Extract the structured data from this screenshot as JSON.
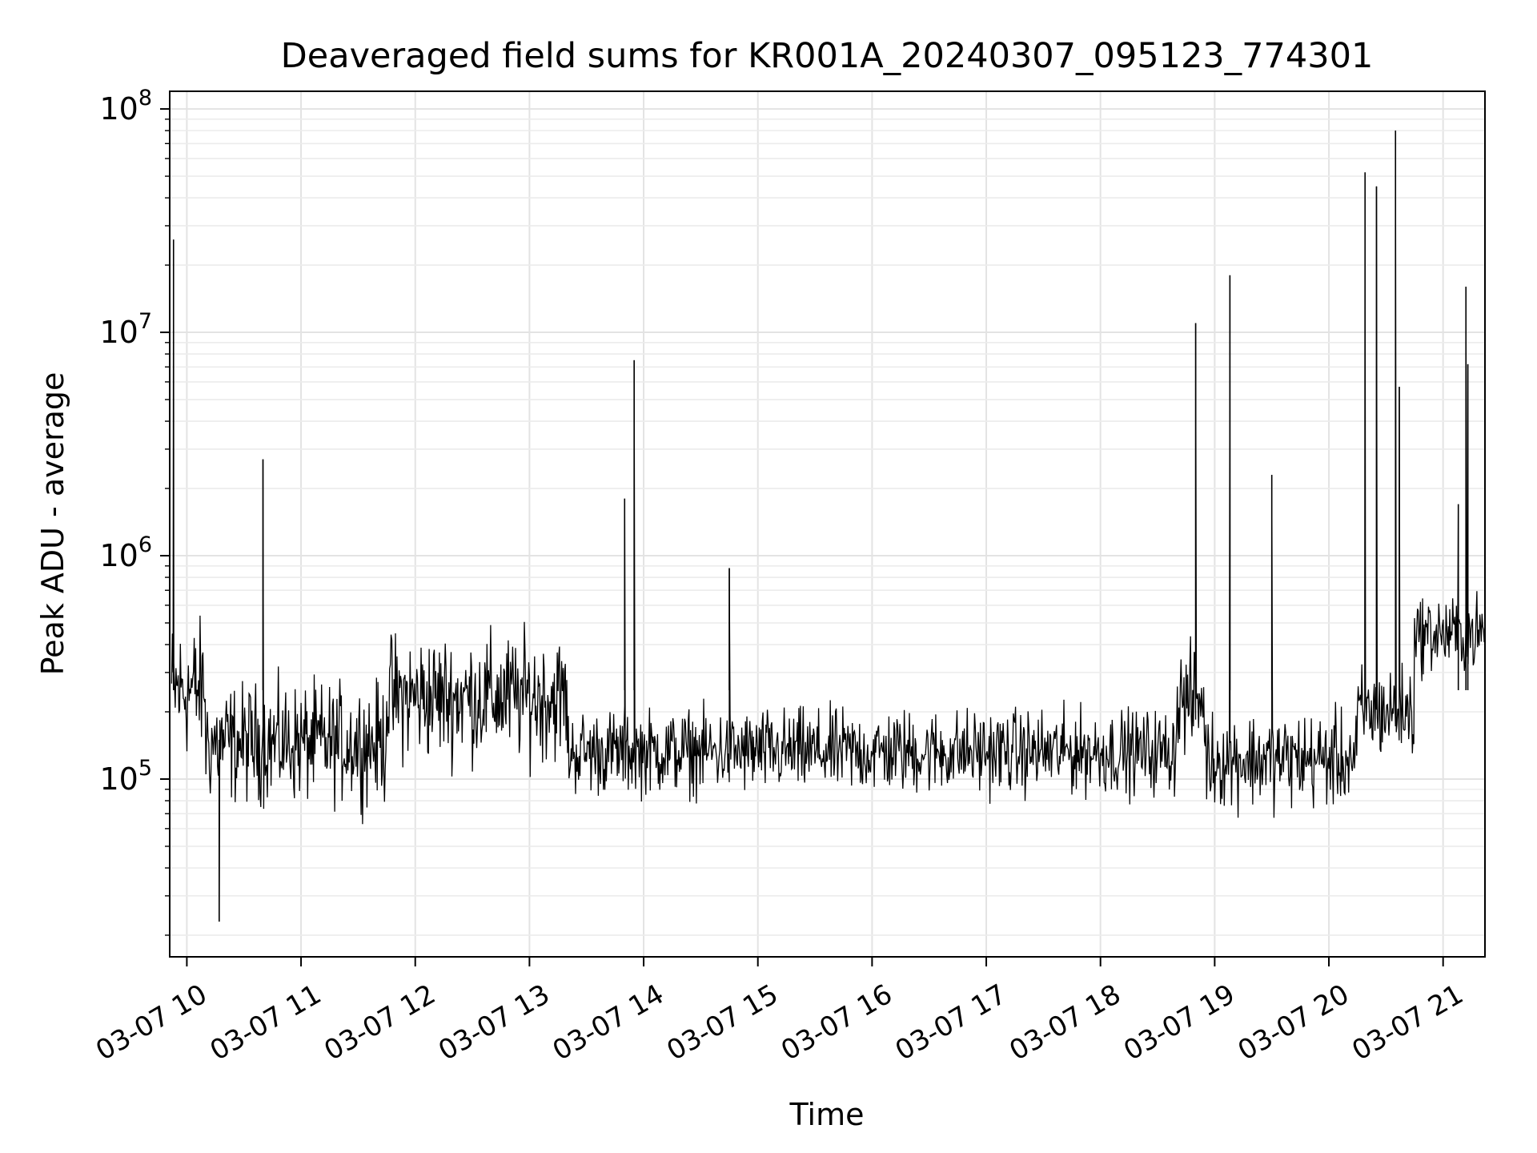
{
  "chart_data": {
    "type": "line",
    "title": "Deaveraged field sums for KR001A_20240307_095123_774301",
    "xlabel": "Time",
    "ylabel": "Peak ADU - average",
    "yscale": "log",
    "ylim": [
      16000,
      120000000
    ],
    "xlim": [
      "2024-03-07 09:51",
      "2024-03-07 21:22"
    ],
    "grid": true,
    "legend": "none",
    "line_color": "#000000",
    "x_ticks": [
      {
        "label": "03-07 10",
        "time": "2024-03-07 10:00"
      },
      {
        "label": "03-07 11",
        "time": "2024-03-07 11:00"
      },
      {
        "label": "03-07 12",
        "time": "2024-03-07 12:00"
      },
      {
        "label": "03-07 13",
        "time": "2024-03-07 13:00"
      },
      {
        "label": "03-07 14",
        "time": "2024-03-07 14:00"
      },
      {
        "label": "03-07 15",
        "time": "2024-03-07 15:00"
      },
      {
        "label": "03-07 16",
        "time": "2024-03-07 16:00"
      },
      {
        "label": "03-07 17",
        "time": "2024-03-07 17:00"
      },
      {
        "label": "03-07 18",
        "time": "2024-03-07 18:00"
      },
      {
        "label": "03-07 19",
        "time": "2024-03-07 19:00"
      },
      {
        "label": "03-07 20",
        "time": "2024-03-07 20:00"
      },
      {
        "label": "03-07 21",
        "time": "2024-03-07 21:00"
      }
    ],
    "y_ticks": [
      {
        "base": "10",
        "exp": "5",
        "value": 100000
      },
      {
        "base": "10",
        "exp": "6",
        "value": 1000000
      },
      {
        "base": "10",
        "exp": "7",
        "value": 10000000
      },
      {
        "base": "10",
        "exp": "8",
        "value": 100000000
      }
    ],
    "baseline_segments": [
      {
        "start": "09:52",
        "end": "10:10",
        "low": 90000,
        "high": 700000
      },
      {
        "start": "10:10",
        "end": "11:45",
        "low": 60000,
        "high": 350000
      },
      {
        "start": "11:45",
        "end": "13:20",
        "low": 90000,
        "high": 600000
      },
      {
        "start": "13:20",
        "end": "18:40",
        "low": 70000,
        "high": 250000
      },
      {
        "start": "18:40",
        "end": "18:55",
        "low": 100000,
        "high": 500000
      },
      {
        "start": "18:55",
        "end": "20:15",
        "low": 60000,
        "high": 250000
      },
      {
        "start": "20:15",
        "end": "20:45",
        "low": 100000,
        "high": 400000
      },
      {
        "start": "20:45",
        "end": "21:22",
        "low": 250000,
        "high": 800000
      }
    ],
    "spikes": [
      {
        "time": "09:53",
        "value": 26000000
      },
      {
        "time": "10:40",
        "value": 2700000
      },
      {
        "time": "13:55",
        "value": 7500000
      },
      {
        "time": "13:50",
        "value": 1800000
      },
      {
        "time": "14:45",
        "value": 880000
      },
      {
        "time": "18:50",
        "value": 11000000
      },
      {
        "time": "19:08",
        "value": 18000000
      },
      {
        "time": "19:30",
        "value": 2300000
      },
      {
        "time": "20:19",
        "value": 52000000
      },
      {
        "time": "20:25",
        "value": 45000000
      },
      {
        "time": "20:35",
        "value": 80000000
      },
      {
        "time": "20:37",
        "value": 5700000
      },
      {
        "time": "21:12",
        "value": 16000000
      },
      {
        "time": "21:08",
        "value": 1700000
      },
      {
        "time": "21:13",
        "value": 7200000
      }
    ],
    "dips": [
      {
        "time": "10:17",
        "value": 23000
      }
    ]
  }
}
